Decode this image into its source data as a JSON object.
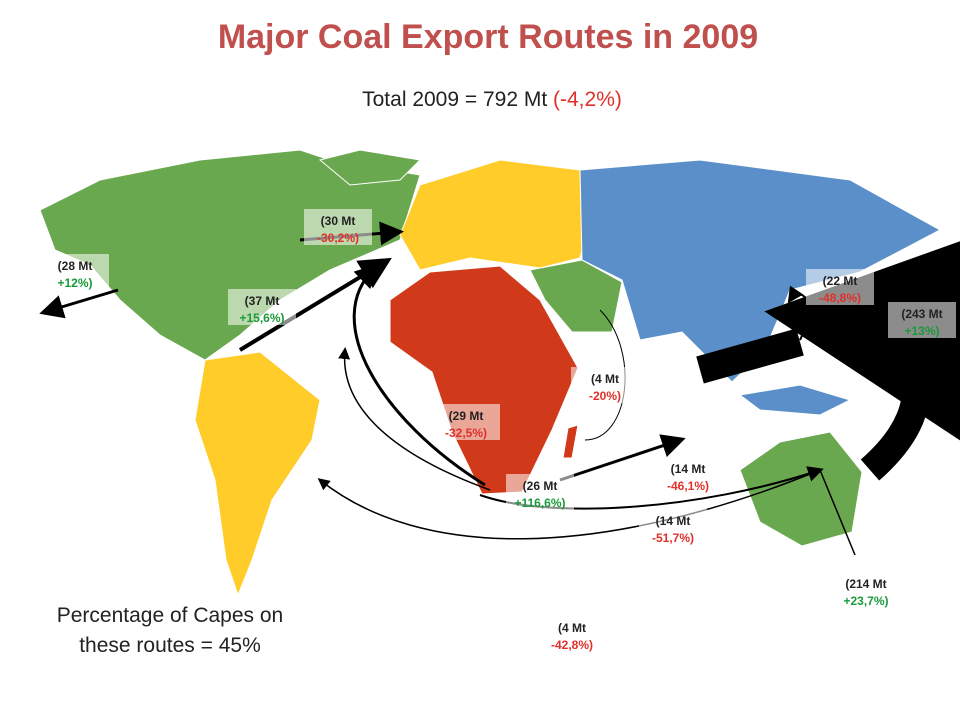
{
  "title": "Major Coal Export Routes in 2009",
  "total": {
    "text": "Total 2009 = 792 Mt",
    "change": "(-4,2%)",
    "change_color": "#e0302a"
  },
  "routes": [
    {
      "volume": "(28 Mt",
      "change": "+12%)",
      "color": "#1a9a3a"
    },
    {
      "volume": "(30 Mt",
      "change": "-30,2%)",
      "color": "#e0302a"
    },
    {
      "volume": "(37 Mt",
      "change": "+15,6%)",
      "color": "#1a9a3a"
    },
    {
      "volume": "(22 Mt",
      "change": "-48,8%)",
      "color": "#e0302a"
    },
    {
      "volume": "(243 Mt",
      "change": "+13%)",
      "color": "#1a9a3a"
    },
    {
      "volume": "(4 Mt",
      "change": "-20%)",
      "color": "#e0302a"
    },
    {
      "volume": "(29 Mt",
      "change": "-32,5%)",
      "color": "#e0302a"
    },
    {
      "volume": "(26 Mt",
      "change": "+116,6%)",
      "color": "#1a9a3a"
    },
    {
      "volume": "(14 Mt",
      "change": "-46,1%)",
      "color": "#e0302a"
    },
    {
      "volume": "(14 Mt",
      "change": "-51,7%)",
      "color": "#e0302a"
    },
    {
      "volume": "(214 Mt",
      "change": "+23,7%)",
      "color": "#1a9a3a"
    },
    {
      "volume": "(4 Mt",
      "change": "-42,8%)",
      "color": "#e0302a"
    }
  ],
  "note": [
    "Percentage of Capes on",
    "these routes = 45%"
  ]
}
